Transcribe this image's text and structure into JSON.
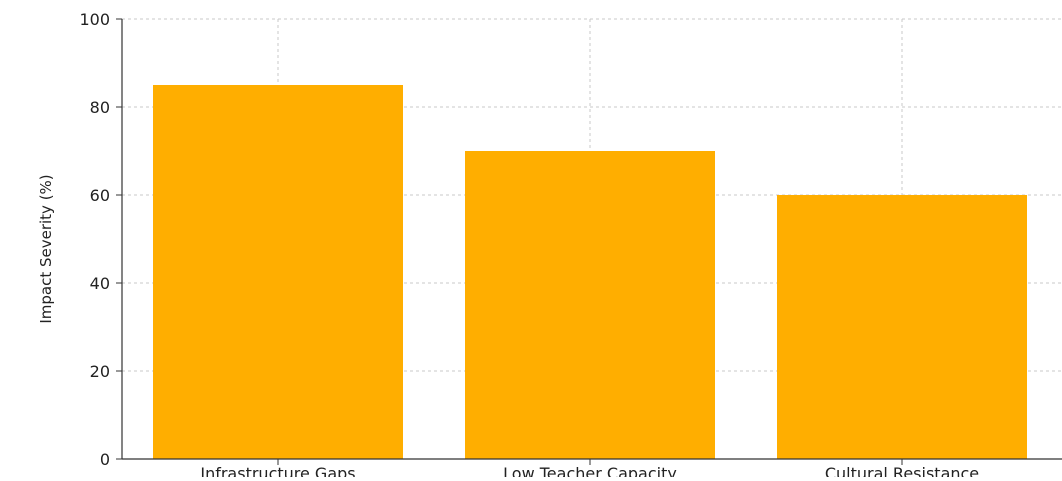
{
  "chart_data": {
    "type": "bar",
    "title": "",
    "xlabel": "",
    "ylabel": "Impact Severity (%)",
    "categories": [
      "Infrastructure Gaps",
      "Low Teacher Capacity",
      "Cultural Resistance"
    ],
    "values": [
      85,
      70,
      60
    ],
    "ylim": [
      0,
      100
    ],
    "yticks": [
      0,
      20,
      40,
      60,
      80,
      100
    ],
    "grid": true,
    "bar_color": "#FFAE00",
    "legend": null
  }
}
